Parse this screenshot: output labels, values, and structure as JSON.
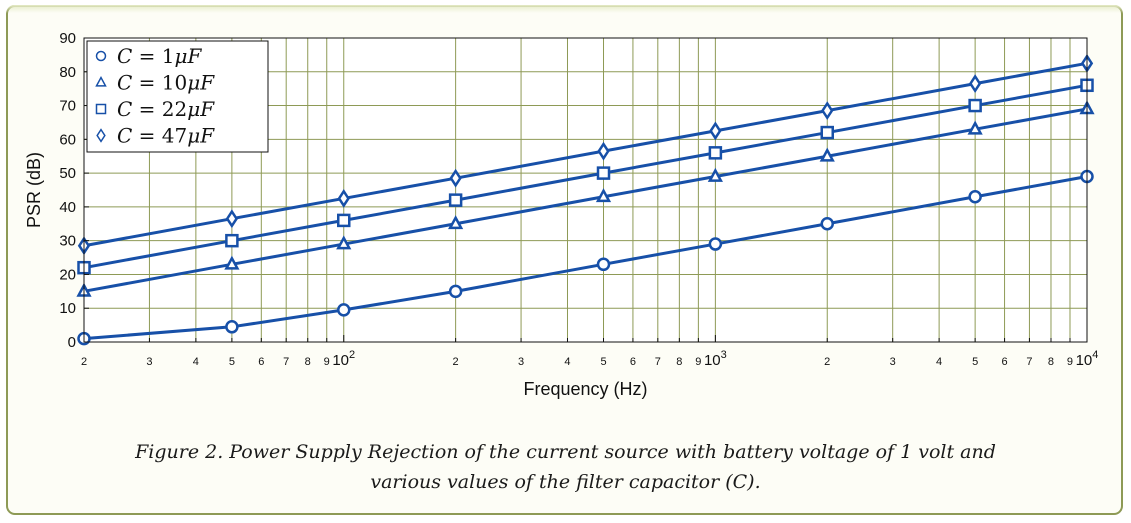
{
  "figure": {
    "caption_line1": "Figure 2.  Power Supply Rejection of the current source with battery voltage of 1 volt and",
    "caption_line2": "various values of the filter capacitor (C)."
  },
  "colors": {
    "series": "#1750a8",
    "grid": "#8e9a56",
    "frame": "#8e9a56"
  },
  "chart_data": {
    "type": "line",
    "x_scale": "log",
    "xlabel": "Frequency (Hz)",
    "ylabel": "PSR (dB)",
    "xlim": [
      20,
      10000
    ],
    "ylim": [
      0,
      90
    ],
    "grid": true,
    "legend_position": "top-left",
    "y_ticks": [
      0,
      10,
      20,
      30,
      40,
      50,
      60,
      70,
      80,
      90
    ],
    "x_tick_labels": [
      {
        "x": 20,
        "label": "2"
      },
      {
        "x": 30,
        "label": "3"
      },
      {
        "x": 40,
        "label": "4"
      },
      {
        "x": 50,
        "label": "5"
      },
      {
        "x": 60,
        "label": "6"
      },
      {
        "x": 70,
        "label": "7"
      },
      {
        "x": 80,
        "label": "8"
      },
      {
        "x": 90,
        "label": "9"
      },
      {
        "x": 200,
        "label": "2"
      },
      {
        "x": 300,
        "label": "3"
      },
      {
        "x": 400,
        "label": "4"
      },
      {
        "x": 500,
        "label": "5"
      },
      {
        "x": 600,
        "label": "6"
      },
      {
        "x": 700,
        "label": "7"
      },
      {
        "x": 800,
        "label": "8"
      },
      {
        "x": 900,
        "label": "9"
      },
      {
        "x": 2000,
        "label": "2"
      },
      {
        "x": 3000,
        "label": "3"
      },
      {
        "x": 4000,
        "label": "4"
      },
      {
        "x": 5000,
        "label": "5"
      },
      {
        "x": 6000,
        "label": "6"
      },
      {
        "x": 7000,
        "label": "7"
      },
      {
        "x": 8000,
        "label": "8"
      },
      {
        "x": 9000,
        "label": "9"
      }
    ],
    "x_decade_labels": [
      {
        "x": 100,
        "base": "10",
        "exp": "2"
      },
      {
        "x": 1000,
        "base": "10",
        "exp": "3"
      },
      {
        "x": 10000,
        "base": "10",
        "exp": "4"
      }
    ],
    "x": [
      20,
      50,
      100,
      200,
      500,
      1000,
      2000,
      5000,
      10000
    ],
    "series": [
      {
        "name": "C = 1μF",
        "name_parts": [
          "C",
          " = 1",
          "μ",
          "F"
        ],
        "marker": "circle",
        "values": [
          1,
          4.5,
          9.5,
          15,
          23,
          29,
          35,
          43,
          49
        ]
      },
      {
        "name": "C = 10μF",
        "name_parts": [
          "C",
          " = 10",
          "μ",
          "F"
        ],
        "marker": "triangle",
        "values": [
          15,
          23,
          29,
          35,
          43,
          49,
          55,
          63,
          69
        ]
      },
      {
        "name": "C = 22μF",
        "name_parts": [
          "C",
          " = 22",
          "μ",
          "F"
        ],
        "marker": "square",
        "values": [
          22,
          30,
          36,
          42,
          50,
          56,
          62,
          70,
          76
        ]
      },
      {
        "name": "C = 47μF",
        "name_parts": [
          "C",
          " = 47",
          "μ",
          "F"
        ],
        "marker": "diamond",
        "values": [
          28.5,
          36.5,
          42.5,
          48.5,
          56.5,
          62.5,
          68.5,
          76.5,
          82.5
        ]
      }
    ]
  }
}
